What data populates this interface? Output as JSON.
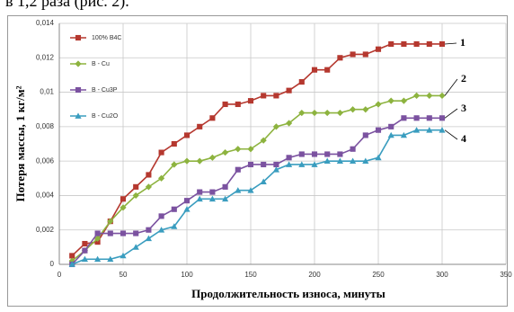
{
  "page_text": "в 1,2 раза (рис. 2).",
  "chart_data": {
    "type": "line",
    "x_label": "Продолжительность износа, минуты",
    "y_label": "Потеря массы, 1 кг/м²",
    "x": [
      10,
      20,
      30,
      40,
      50,
      60,
      70,
      80,
      90,
      100,
      110,
      120,
      130,
      140,
      150,
      160,
      170,
      180,
      190,
      200,
      210,
      220,
      230,
      240,
      250,
      260,
      270,
      280,
      290,
      300
    ],
    "series": [
      {
        "name": "100% B4C",
        "color": "#b5382f",
        "marker": "square",
        "values": [
          0.0005,
          0.0012,
          0.0013,
          0.0025,
          0.0038,
          0.0045,
          0.0052,
          0.0065,
          0.007,
          0.0075,
          0.008,
          0.0085,
          0.0093,
          0.0093,
          0.0095,
          0.0098,
          0.0098,
          0.0101,
          0.0106,
          0.0113,
          0.0113,
          0.012,
          0.0122,
          0.0122,
          0.0125,
          0.0128,
          0.0128,
          0.0128,
          0.0128,
          0.0128
        ]
      },
      {
        "name": "B - Cu",
        "color": "#8db33f",
        "marker": "diamond",
        "values": [
          0.0002,
          0.0008,
          0.0015,
          0.0025,
          0.0033,
          0.004,
          0.0045,
          0.005,
          0.0058,
          0.006,
          0.006,
          0.0062,
          0.0065,
          0.0067,
          0.0067,
          0.0072,
          0.008,
          0.0082,
          0.0088,
          0.0088,
          0.0088,
          0.0088,
          0.009,
          0.009,
          0.0093,
          0.0095,
          0.0095,
          0.0098,
          0.0098,
          0.0098
        ]
      },
      {
        "name": "B - Cu3P",
        "color": "#7b52a0",
        "marker": "square",
        "values": [
          0,
          0.0008,
          0.0018,
          0.0018,
          0.0018,
          0.0018,
          0.002,
          0.0028,
          0.0032,
          0.0037,
          0.0042,
          0.0042,
          0.0045,
          0.0055,
          0.0058,
          0.0058,
          0.0058,
          0.0062,
          0.0064,
          0.0064,
          0.0064,
          0.0064,
          0.0067,
          0.0075,
          0.0078,
          0.008,
          0.0085,
          0.0085,
          0.0085,
          0.0085
        ]
      },
      {
        "name": "B - Cu2O",
        "color": "#3a9dbf",
        "marker": "triangle",
        "values": [
          0,
          0.0003,
          0.0003,
          0.0003,
          0.0005,
          0.001,
          0.0015,
          0.002,
          0.0022,
          0.0032,
          0.0038,
          0.0038,
          0.0038,
          0.0043,
          0.0043,
          0.0048,
          0.0055,
          0.0058,
          0.0058,
          0.0058,
          0.006,
          0.006,
          0.006,
          0.006,
          0.0062,
          0.0075,
          0.0075,
          0.0078,
          0.0078,
          0.0078
        ]
      }
    ],
    "annotations": [
      "1",
      "2",
      "3",
      "4"
    ],
    "xlim": [
      0,
      350
    ],
    "xticks": [
      0,
      50,
      100,
      150,
      200,
      250,
      300,
      350
    ],
    "ylim": [
      0,
      0.014
    ],
    "yticks": [
      0,
      {
        "value": 0.002,
        "label": "0,002"
      },
      {
        "value": 0.004,
        "label": "0,004"
      },
      {
        "value": 0.006,
        "label": "0,006"
      },
      {
        "value": 0.008,
        "label": "0,008"
      },
      {
        "value": 0.01,
        "label": "0,01"
      },
      {
        "value": 0.012,
        "label": "0,012"
      },
      {
        "value": 0.014,
        "label": "0,014"
      }
    ],
    "grid": true,
    "legend": "top-left"
  }
}
